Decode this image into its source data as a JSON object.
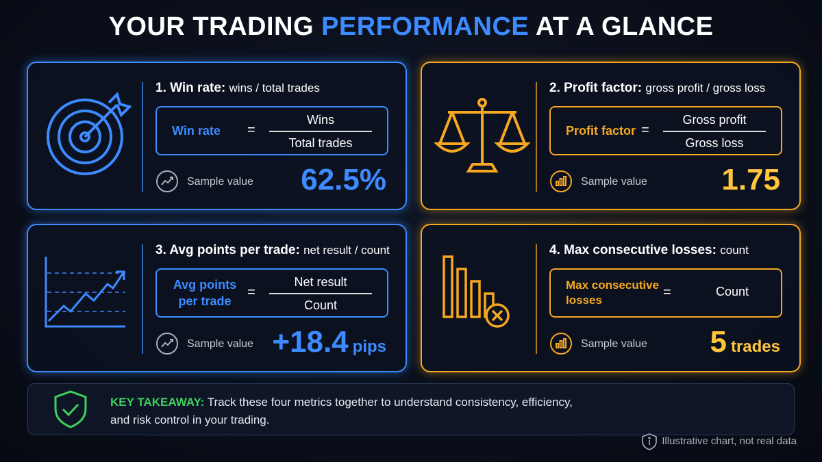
{
  "header": {
    "title_parts": [
      "YOUR TRADING",
      "PERFORMANCE",
      "AT A GLANCE"
    ]
  },
  "cards": [
    {
      "heading": "1. Win rate:",
      "subheading": "wins / total trades",
      "formula": {
        "lhs": [
          "Win rate"
        ],
        "operator": "=",
        "numerator": "Wins",
        "denominator": "Total trades"
      },
      "sample_label": "Sample value",
      "sample_value": "62.5%"
    },
    {
      "heading": "2. Profit factor:",
      "subheading": "gross profit / gross loss",
      "formula": {
        "lhs": [
          "Profit factor"
        ],
        "operator": "=",
        "numerator": "Gross profit",
        "denominator": "Gross loss"
      },
      "sample_label": "Sample value",
      "sample_value": "1.75"
    },
    {
      "heading": "3. Avg points per trade:",
      "subheading": "net result / count",
      "formula": {
        "lhs": [
          "Avg points",
          "per trade"
        ],
        "operator": "=",
        "numerator": "Net result",
        "denominator": "Count"
      },
      "sample_label": "Sample value",
      "sample_value": "+18.4",
      "sample_unit": "pips"
    },
    {
      "heading": "4. Max consecutive losses:",
      "subheading": "count",
      "formula": {
        "lhs": [
          "Max consecutive",
          "losses"
        ],
        "operator": "=",
        "numerator": "Count"
      },
      "sample_label": "Sample value",
      "sample_value": "5",
      "sample_unit": "trades"
    }
  ],
  "takeaway": {
    "label": "KEY TAKEAWAY:",
    "text": "Track these four metrics together to understand consistency, efficiency, and risk control in your trading."
  },
  "footnote": "Illustrative chart, not real data"
}
